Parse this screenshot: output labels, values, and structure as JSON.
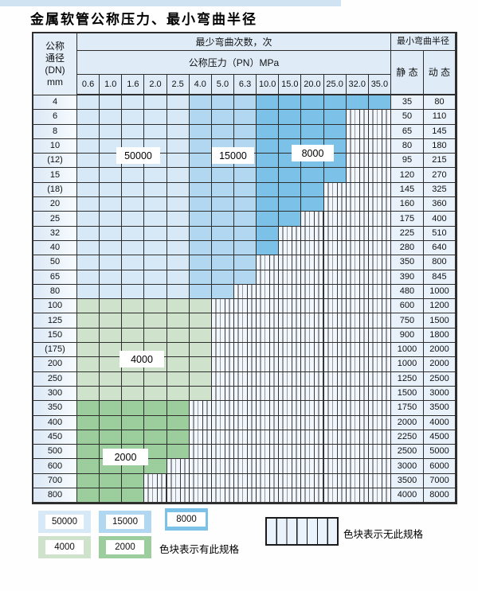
{
  "page": {
    "title": "金属软管公称压力、最小弯曲半径"
  },
  "table": {
    "header": {
      "dn_lines": [
        "公称",
        "通径",
        "(DN)",
        "mm"
      ],
      "bend_cycles": "最少弯曲次数，次",
      "pressure": "公称压力（PN）MPa",
      "pressure_values": [
        "0.6",
        "1.0",
        "1.6",
        "2.0",
        "2.5",
        "4.0",
        "5.0",
        "6.3",
        "10.0",
        "15.0",
        "20.0",
        "25.0",
        "32.0",
        "35.0"
      ],
      "radius": "最小弯曲半径",
      "static": "静 态",
      "dynamic": "动 态"
    },
    "rows": [
      {
        "dn": "4",
        "band": "blue",
        "colored": 14,
        "static": "35",
        "dynamic": "80"
      },
      {
        "dn": "6",
        "band": "blue",
        "colored": 12,
        "static": "50",
        "dynamic": "110"
      },
      {
        "dn": "8",
        "band": "blue",
        "colored": 12,
        "static": "65",
        "dynamic": "145"
      },
      {
        "dn": "10",
        "band": "blue",
        "colored": 12,
        "static": "80",
        "dynamic": "180"
      },
      {
        "dn": "(12)",
        "band": "blue",
        "colored": 12,
        "static": "95",
        "dynamic": "215"
      },
      {
        "dn": "15",
        "band": "blue",
        "colored": 12,
        "static": "120",
        "dynamic": "270"
      },
      {
        "dn": "(18)",
        "band": "blue",
        "colored": 11,
        "static": "145",
        "dynamic": "325"
      },
      {
        "dn": "20",
        "band": "blue",
        "colored": 11,
        "static": "160",
        "dynamic": "360"
      },
      {
        "dn": "25",
        "band": "blue",
        "colored": 10,
        "static": "175",
        "dynamic": "400"
      },
      {
        "dn": "32",
        "band": "blue",
        "colored": 9,
        "static": "225",
        "dynamic": "510"
      },
      {
        "dn": "40",
        "band": "blue",
        "colored": 9,
        "static": "280",
        "dynamic": "640"
      },
      {
        "dn": "50",
        "band": "blue",
        "colored": 8,
        "static": "350",
        "dynamic": "800"
      },
      {
        "dn": "65",
        "band": "blue",
        "colored": 8,
        "static": "390",
        "dynamic": "845"
      },
      {
        "dn": "80",
        "band": "blue",
        "colored": 7,
        "static": "480",
        "dynamic": "1000"
      },
      {
        "dn": "100",
        "band": "g4000",
        "colored": 6,
        "static": "600",
        "dynamic": "1200"
      },
      {
        "dn": "125",
        "band": "g4000",
        "colored": 6,
        "static": "750",
        "dynamic": "1500"
      },
      {
        "dn": "150",
        "band": "g4000",
        "colored": 6,
        "static": "900",
        "dynamic": "1800"
      },
      {
        "dn": "(175)",
        "band": "g4000",
        "colored": 6,
        "static": "1000",
        "dynamic": "2000"
      },
      {
        "dn": "200",
        "band": "g4000",
        "colored": 6,
        "static": "1000",
        "dynamic": "2000"
      },
      {
        "dn": "250",
        "band": "g4000",
        "colored": 6,
        "static": "1250",
        "dynamic": "2500"
      },
      {
        "dn": "300",
        "band": "g4000",
        "colored": 6,
        "static": "1500",
        "dynamic": "3000"
      },
      {
        "dn": "350",
        "band": "g2000",
        "colored": 5,
        "static": "1750",
        "dynamic": "3500"
      },
      {
        "dn": "400",
        "band": "g2000",
        "colored": 5,
        "static": "2000",
        "dynamic": "4000"
      },
      {
        "dn": "450",
        "band": "g2000",
        "colored": 5,
        "static": "2250",
        "dynamic": "4500"
      },
      {
        "dn": "500",
        "band": "g2000",
        "colored": 5,
        "static": "2500",
        "dynamic": "5000"
      },
      {
        "dn": "600",
        "band": "g2000",
        "colored": 4,
        "static": "3000",
        "dynamic": "6000"
      },
      {
        "dn": "700",
        "band": "g2000",
        "colored": 3,
        "static": "3500",
        "dynamic": "7000"
      },
      {
        "dn": "800",
        "band": "g2000",
        "colored": 3,
        "static": "4000",
        "dynamic": "8000"
      }
    ],
    "overlays": [
      {
        "label": "50000"
      },
      {
        "label": "15000"
      },
      {
        "label": "8000"
      },
      {
        "label": "4000"
      },
      {
        "label": "2000"
      }
    ]
  },
  "colors": {
    "cycles_50000": "#d7e9f7",
    "cycles_15000": "#b2d7f0",
    "cycles_8000": "#7cc2e8",
    "cycles_4000": "#cfe3cc",
    "cycles_2000": "#9ccd9d",
    "header_bg": "#dfecf8",
    "stripe_bg": "#f1f7fd",
    "border": "#2e2e2e"
  },
  "legend": {
    "swatches": [
      {
        "label": "50000",
        "color": "#d7e9f7"
      },
      {
        "label": "15000",
        "color": "#b2d7f0"
      },
      {
        "label": "8000",
        "color": "#7cc2e8"
      },
      {
        "label": "4000",
        "color": "#cfe3cc"
      },
      {
        "label": "2000",
        "color": "#9ccd9d"
      }
    ],
    "has_spec_text": "色块表示有此规格",
    "no_spec_text": "色块表示无此规格"
  }
}
